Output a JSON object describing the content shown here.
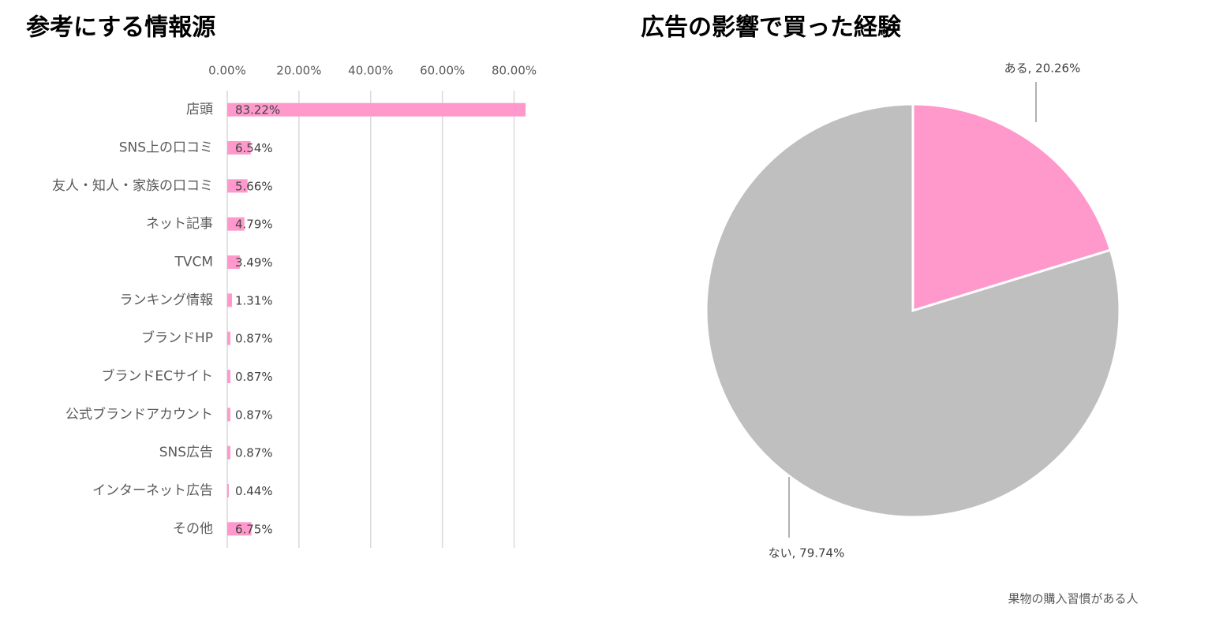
{
  "chart_data": [
    {
      "type": "bar",
      "title": "参考にする情報源",
      "categories": [
        "店頭",
        "SNS上の口コミ",
        "友人・知人・家族の口コミ",
        "ネット記事",
        "TVCM",
        "ランキング情報",
        "ブランドHP",
        "ブランドECサイト",
        "公式ブランドアカウント",
        "SNS広告",
        "インターネット広告",
        "その他"
      ],
      "values": [
        83.22,
        6.54,
        5.66,
        4.79,
        3.49,
        1.31,
        0.87,
        0.87,
        0.87,
        0.87,
        0.44,
        6.75
      ],
      "value_labels": [
        "83.22%",
        "6.54%",
        "5.66%",
        "4.79%",
        "3.49%",
        "1.31%",
        "0.87%",
        "0.87%",
        "0.87%",
        "0.87%",
        "0.44%",
        "6.75%"
      ],
      "color": "#ff99cc",
      "orientation": "horizontal",
      "xlim": [
        0,
        90
      ],
      "xticks": [
        {
          "value": 0,
          "label": "0.00%"
        },
        {
          "value": 20,
          "label": "20.00%"
        },
        {
          "value": 40,
          "label": "40.00%"
        },
        {
          "value": 60,
          "label": "60.00%"
        },
        {
          "value": 80,
          "label": "80.00%"
        }
      ],
      "grid": true
    },
    {
      "type": "pie",
      "title": "広告の影響で買った経験",
      "values": [
        20.26,
        79.74
      ],
      "value_labels": [
        "ある, 20.26%",
        "ない, 79.74%"
      ],
      "colors": [
        "#ff99cc",
        "#bfbfbf"
      ],
      "note": "果物の購入習慣がある人"
    }
  ]
}
